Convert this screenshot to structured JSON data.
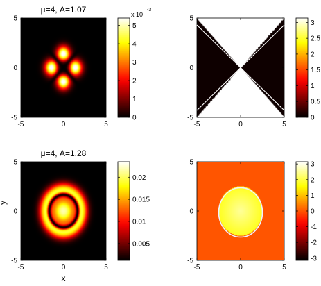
{
  "chart_data": [
    {
      "type": "heatmap",
      "title": "μ=4, A=1.07",
      "xlabel": "",
      "ylabel": "",
      "xlim": [
        -5,
        5
      ],
      "ylim": [
        -5,
        5
      ],
      "x_ticks": [
        "-5",
        "0",
        "5"
      ],
      "y_ticks": [
        "5",
        "0",
        "-5"
      ],
      "colorbar": {
        "range": [
          0,
          0.0054
        ],
        "ticks": [
          "5",
          "4",
          "3",
          "2",
          "1",
          "0"
        ],
        "tick_values": [
          0.005,
          0.004,
          0.003,
          0.002,
          0.001,
          0
        ],
        "multiplier_base": "x 10",
        "multiplier_exp": "-3"
      },
      "colormap": "hot",
      "pattern": "four-lobe"
    },
    {
      "type": "heatmap",
      "title": "",
      "xlabel": "",
      "ylabel": "",
      "xlim": [
        -5,
        5
      ],
      "ylim": [
        -5,
        5
      ],
      "x_ticks": [
        "-5",
        "0",
        "5"
      ],
      "y_ticks": [
        "5",
        "0",
        "-5"
      ],
      "colorbar": {
        "range": [
          0,
          3.14
        ],
        "ticks": [
          "3",
          "2.5",
          "2",
          "1.5",
          "1",
          "0.5",
          "0"
        ],
        "tick_values": [
          3,
          2.5,
          2,
          1.5,
          1,
          0.5,
          0
        ]
      },
      "colormap": "hot",
      "pattern": "hourglass-phase"
    },
    {
      "type": "heatmap",
      "title": "μ=4, A=1.28",
      "xlabel": "x",
      "ylabel": "y",
      "xlim": [
        -5,
        5
      ],
      "ylim": [
        -5,
        5
      ],
      "x_ticks": [
        "-5",
        "0",
        "5"
      ],
      "y_ticks": [
        "5",
        "0",
        "-5"
      ],
      "colorbar": {
        "range": [
          0.0012,
          0.0235
        ],
        "ticks": [
          "0.02",
          "0.015",
          "0.01",
          "0.005"
        ],
        "tick_values": [
          0.02,
          0.015,
          0.01,
          0.005
        ]
      },
      "colormap": "hot",
      "pattern": "ring"
    },
    {
      "type": "heatmap",
      "title": "",
      "xlabel": "",
      "ylabel": "",
      "xlim": [
        -5,
        5
      ],
      "ylim": [
        -5,
        5
      ],
      "x_ticks": [
        "-5",
        "0",
        "5"
      ],
      "y_ticks": [
        "5",
        "0",
        "-5"
      ],
      "colorbar": {
        "range": [
          -3.14,
          3.14
        ],
        "ticks": [
          "3",
          "2",
          "1",
          "0",
          "-1",
          "-2",
          "-3"
        ],
        "tick_values": [
          3,
          2,
          1,
          0,
          -1,
          -2,
          -3
        ]
      },
      "colormap": "hot",
      "pattern": "disk-phase"
    }
  ]
}
